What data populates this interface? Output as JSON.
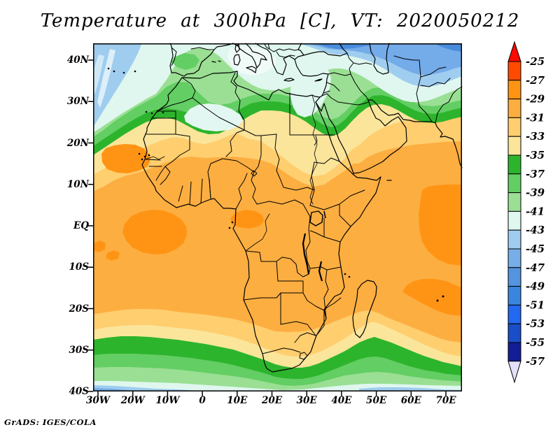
{
  "title": "Temperature at 300hPa [C], VT: 2020050212",
  "credit": "GrADS: IGES/COLA",
  "axes": {
    "y_labels": [
      "40N",
      "30N",
      "20N",
      "10N",
      "EQ",
      "10S",
      "20S",
      "30S",
      "40S"
    ],
    "x_labels": [
      "30W",
      "20W",
      "10W",
      "0",
      "10E",
      "20E",
      "30E",
      "40E",
      "50E",
      "60E",
      "70E"
    ]
  },
  "colorbar": {
    "levels": [
      "-25",
      "-27",
      "-29",
      "-31",
      "-33",
      "-35",
      "-37",
      "-39",
      "-41",
      "-43",
      "-45",
      "-47",
      "-49",
      "-51",
      "-53",
      "-55",
      "-57"
    ],
    "colors": [
      "#FB0A00",
      "#FF4A00",
      "#FF9414",
      "#FCAE41",
      "#FFCE6E",
      "#FAE59B",
      "#2DB42D",
      "#63CE63",
      "#9ADF93",
      "#DFF7EF",
      "#9FCDEF",
      "#77AEE8",
      "#5494E0",
      "#3A86DE",
      "#2268F0",
      "#1A4EC8",
      "#131E96",
      "#E4E0F8"
    ]
  },
  "chart_data": {
    "type": "heatmap",
    "title": "Temperature at 300hPa [C], VT: 2020050212",
    "field": "Temperature",
    "level": "300hPa",
    "units": "C",
    "valid_time": "2020050212",
    "x_ticks": [
      "30W",
      "20W",
      "10W",
      "0",
      "10E",
      "20E",
      "30E",
      "40E",
      "50E",
      "60E",
      "70E"
    ],
    "y_ticks": [
      "40N",
      "30N",
      "20N",
      "10N",
      "EQ",
      "10S",
      "20S",
      "30S",
      "40S"
    ],
    "contour_levels": [
      -25,
      -27,
      -29,
      -31,
      -33,
      -35,
      -37,
      -39,
      -41,
      -43,
      -45,
      -47,
      -49,
      -51,
      -53,
      -55,
      -57
    ],
    "palette": [
      "#FB0A00",
      "#FF4A00",
      "#FF9414",
      "#FCAE41",
      "#FFCE6E",
      "#FAE59B",
      "#2DB42D",
      "#63CE63",
      "#9ADF93",
      "#DFF7EF",
      "#9FCDEF",
      "#77AEE8",
      "#5494E0",
      "#3A86DE",
      "#2268F0",
      "#1A4EC8",
      "#131E96",
      "#E4E0F8"
    ],
    "legend_position": "right",
    "description": "Filled contour map of 300hPa temperature over Africa; warm band (-29 to -31 C) across the tropics, green bands (-35 to -41 C) near 30N and 28S, cold blues (below -43 C) over the Mediterranean/Black Sea and Southern Ocean"
  }
}
